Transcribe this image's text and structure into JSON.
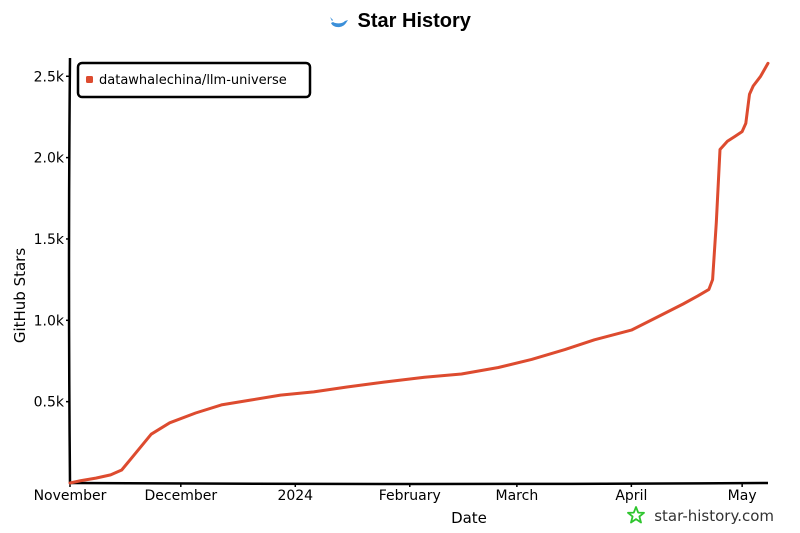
{
  "colors": {
    "series": "#dd4b2f",
    "axis": "#000000",
    "watermark_icon": "#2ec52e",
    "title_icon": "#3b8fd9"
  },
  "icons": {
    "title_icon": "whale-icon",
    "watermark_icon": "star-icon"
  },
  "watermark": "star-history.com",
  "chart_data": {
    "type": "line",
    "title": "Star History",
    "xlabel": "Date",
    "ylabel": "GitHub Stars",
    "x_ticks": [
      "November",
      "December",
      "2024",
      "February",
      "March",
      "April",
      "May"
    ],
    "x_tick_dates": [
      "2023-11-01",
      "2023-12-01",
      "2024-01-01",
      "2024-02-01",
      "2024-03-01",
      "2024-04-01",
      "2024-05-01"
    ],
    "xlim": [
      "2023-11-01",
      "2024-05-08"
    ],
    "y_ticks": [
      0,
      500,
      1000,
      1500,
      2000,
      2500
    ],
    "y_tick_labels": [
      "",
      "0.5k",
      "1.0k",
      "1.5k",
      "2.0k",
      "2.5k"
    ],
    "ylim": [
      0,
      2600
    ],
    "grid": false,
    "legend_position": "top-left",
    "series": [
      {
        "name": "datawhalechina/llm-universe",
        "points": [
          [
            "2023-11-01",
            0
          ],
          [
            "2023-11-04",
            15
          ],
          [
            "2023-11-08",
            30
          ],
          [
            "2023-11-12",
            50
          ],
          [
            "2023-11-15",
            80
          ],
          [
            "2023-11-19",
            190
          ],
          [
            "2023-11-23",
            300
          ],
          [
            "2023-11-28",
            370
          ],
          [
            "2023-12-05",
            430
          ],
          [
            "2023-12-12",
            480
          ],
          [
            "2023-12-20",
            510
          ],
          [
            "2023-12-28",
            540
          ],
          [
            "2024-01-06",
            560
          ],
          [
            "2024-01-15",
            590
          ],
          [
            "2024-01-25",
            620
          ],
          [
            "2024-02-05",
            650
          ],
          [
            "2024-02-15",
            670
          ],
          [
            "2024-02-25",
            710
          ],
          [
            "2024-03-05",
            760
          ],
          [
            "2024-03-14",
            820
          ],
          [
            "2024-03-22",
            880
          ],
          [
            "2024-04-01",
            940
          ],
          [
            "2024-04-08",
            1020
          ],
          [
            "2024-04-15",
            1100
          ],
          [
            "2024-04-19",
            1150
          ],
          [
            "2024-04-22",
            1190
          ],
          [
            "2024-04-23",
            1250
          ],
          [
            "2024-04-24",
            1600
          ],
          [
            "2024-04-25",
            2050
          ],
          [
            "2024-04-27",
            2100
          ],
          [
            "2024-04-29",
            2130
          ],
          [
            "2024-05-01",
            2160
          ],
          [
            "2024-05-02",
            2210
          ],
          [
            "2024-05-03",
            2390
          ],
          [
            "2024-05-04",
            2440
          ],
          [
            "2024-05-06",
            2500
          ],
          [
            "2024-05-08",
            2580
          ]
        ]
      }
    ]
  }
}
